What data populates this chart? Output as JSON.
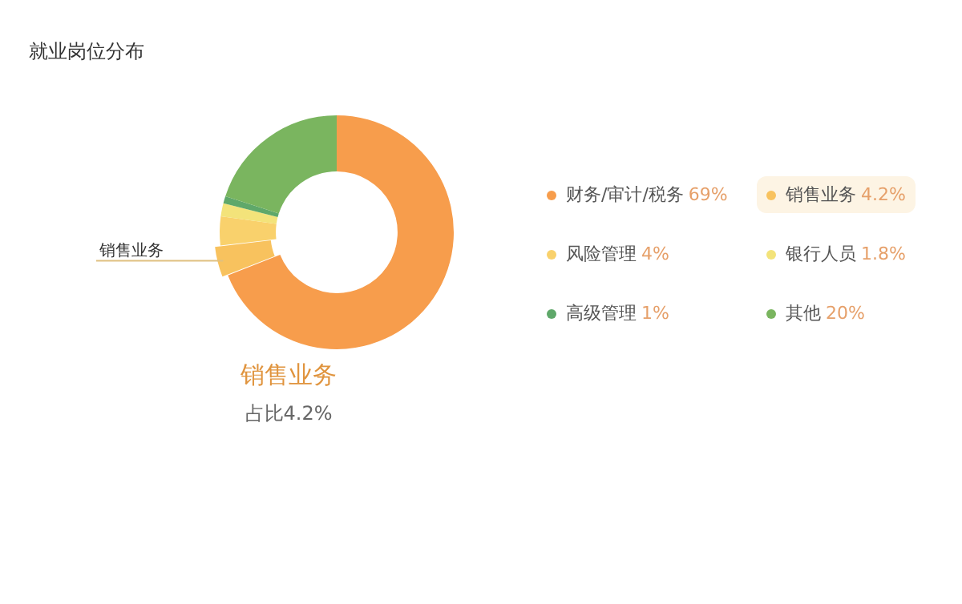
{
  "chart_data": {
    "type": "donut",
    "title": "就业岗位分布",
    "categories": [
      "财务/审计/税务",
      "销售业务",
      "风险管理",
      "银行人员",
      "高级管理",
      "其他"
    ],
    "values": [
      69,
      4.2,
      4,
      1.8,
      1,
      20
    ],
    "value_labels": [
      "69%",
      "4.2%",
      "4%",
      "1.8%",
      "1%",
      "20%"
    ],
    "colors": [
      "#f79d4c",
      "#f8c25e",
      "#f9d16c",
      "#f3e37a",
      "#5fa86a",
      "#7ab55f"
    ],
    "legend": "right",
    "annotations": [
      {
        "text": "销售业务",
        "x": "销售业务"
      },
      "销售业务",
      "占比4.2%"
    ]
  }
}
